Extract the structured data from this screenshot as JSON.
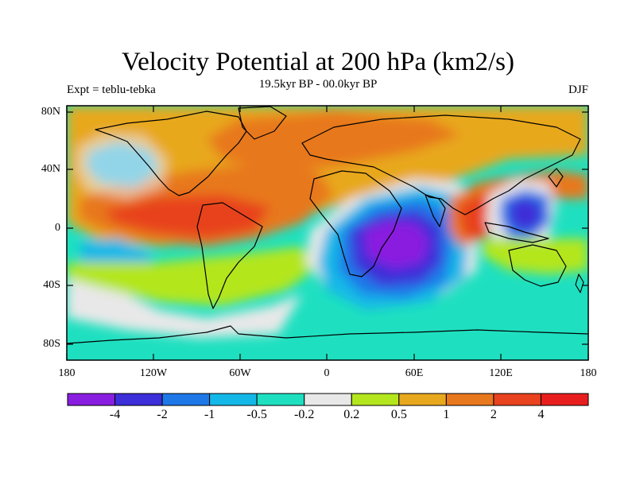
{
  "title": "Velocity Potential at 200 hPa (km2/s)",
  "subtitle": "19.5kyr BP - 00.0kyr BP",
  "left_label": "Expt = teblu-tebka",
  "right_label": "DJF",
  "y_ticks": [
    "80N",
    "40N",
    "0",
    "40S",
    "80S"
  ],
  "x_ticks": [
    "180",
    "120W",
    "60W",
    "0",
    "60E",
    "120E",
    "180"
  ],
  "colorbar": {
    "colors": [
      "#8a1ee0",
      "#3c2ed8",
      "#1e78e8",
      "#14b8e8",
      "#1ee0c0",
      "#e8e8e8",
      "#b4e61e",
      "#e8a81e",
      "#e8781e",
      "#e8421e",
      "#e81e1e"
    ],
    "labels": [
      "-4",
      "-2",
      "-1",
      "-0.5",
      "-0.2",
      "0.2",
      "0.5",
      "1",
      "2",
      "4"
    ]
  },
  "colors": {
    "land_outline": "#000000",
    "frame": "#000000"
  }
}
